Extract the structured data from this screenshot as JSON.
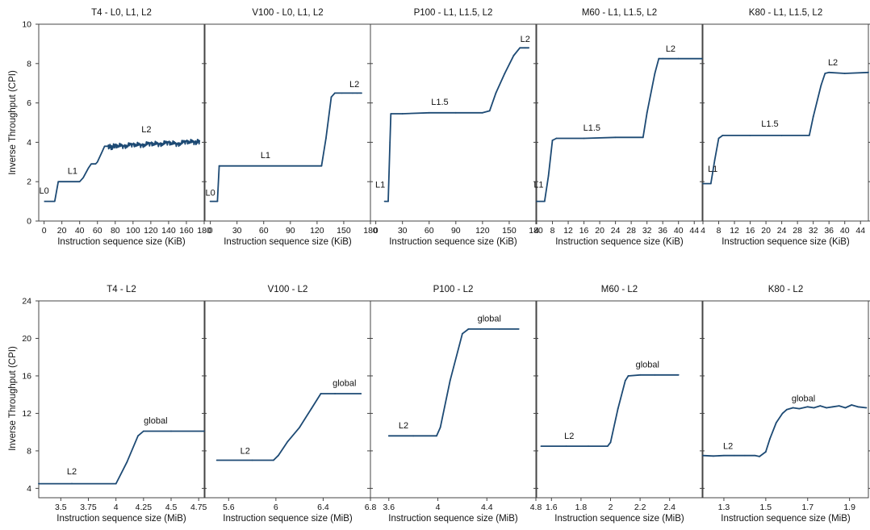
{
  "figure": {
    "ylabel": "Inverse Throughput (CPI)",
    "line_color": "#1d4a74"
  },
  "chart_data": [
    {
      "type": "line",
      "title": "T4 - L0, L1, L2",
      "xlabel": "Instruction sequence size (KiB)",
      "ylabel": "Inverse Throughput (CPI)",
      "xlim": [
        -6,
        180
      ],
      "ylim": [
        0,
        10
      ],
      "xticks": [
        0,
        20,
        40,
        60,
        80,
        100,
        120,
        140,
        160,
        180
      ],
      "xtick_labels": [
        "0",
        "20",
        "40",
        "60",
        "80",
        "100",
        "120",
        "140",
        "160",
        "180"
      ],
      "yticks": [
        0,
        2,
        4,
        6,
        8,
        10
      ],
      "ytick_labels": [
        "0",
        "2",
        "4",
        "6",
        "8",
        "10"
      ],
      "series": [
        {
          "x": [
            0,
            12,
            16,
            40,
            44,
            50,
            53,
            58,
            60,
            65,
            68,
            72,
            76,
            80,
            90,
            100,
            110,
            120,
            130,
            140,
            150,
            160,
            170,
            175
          ],
          "y": [
            1,
            1,
            2,
            2,
            2.2,
            2.7,
            2.9,
            2.9,
            3,
            3.5,
            3.8,
            3.8,
            3.75,
            3.85,
            3.8,
            3.9,
            3.85,
            3.95,
            3.9,
            4,
            3.9,
            4.05,
            4,
            4.05
          ],
          "noise": 0.12,
          "noise_from": 70
        }
      ],
      "annotations": [
        {
          "text": "L0",
          "x": 0,
          "y": 1.4
        },
        {
          "text": "L1",
          "x": 32,
          "y": 2.4
        },
        {
          "text": "L2",
          "x": 115,
          "y": 4.5
        }
      ]
    },
    {
      "type": "line",
      "title": "V100 - L0, L1, L2",
      "xlabel": "Instruction sequence size (KiB)",
      "xlim": [
        -6,
        180
      ],
      "ylim": [
        0,
        10
      ],
      "xticks": [
        0,
        30,
        60,
        90,
        120,
        150,
        180
      ],
      "xtick_labels": [
        "0",
        "30",
        "60",
        "90",
        "120",
        "150",
        "180"
      ],
      "yticks": [
        0,
        2,
        4,
        6,
        8,
        10
      ],
      "ytick_labels": [],
      "series": [
        {
          "x": [
            0,
            8,
            10,
            125,
            130,
            136,
            140,
            148,
            160,
            165,
            170
          ],
          "y": [
            1,
            1,
            2.8,
            2.8,
            4.2,
            6.3,
            6.5,
            6.5,
            6.5,
            6.5,
            6.5
          ],
          "noise": 0
        }
      ],
      "annotations": [
        {
          "text": "L0",
          "x": 0,
          "y": 1.3
        },
        {
          "text": "L1",
          "x": 62,
          "y": 3.2
        },
        {
          "text": "L2",
          "x": 162,
          "y": 6.8
        }
      ]
    },
    {
      "type": "line",
      "title": "P100 - L1, L1.5, L2",
      "xlabel": "Instruction sequence size (KiB)",
      "xlim": [
        -6,
        180
      ],
      "ylim": [
        0,
        10
      ],
      "xticks": [
        0,
        30,
        60,
        90,
        120,
        150,
        180
      ],
      "xtick_labels": [
        "0",
        "30",
        "60",
        "90",
        "120",
        "150",
        "180"
      ],
      "yticks": [
        0,
        2,
        4,
        6,
        8,
        10
      ],
      "ytick_labels": [],
      "series": [
        {
          "x": [
            10,
            14,
            16,
            17,
            30,
            60,
            90,
            120,
            128,
            135,
            145,
            155,
            162,
            168,
            172
          ],
          "y": [
            1,
            1,
            4,
            5.45,
            5.45,
            5.5,
            5.5,
            5.5,
            5.6,
            6.5,
            7.5,
            8.4,
            8.8,
            8.8,
            8.8
          ],
          "noise": 0
        }
      ],
      "annotations": [
        {
          "text": "L1",
          "x": 5,
          "y": 1.7
        },
        {
          "text": "L1.5",
          "x": 72,
          "y": 5.9
        },
        {
          "text": "L2",
          "x": 168,
          "y": 9.1
        }
      ]
    },
    {
      "type": "line",
      "title": "M60 - L1, L1.5, L2",
      "xlabel": "Instruction sequence size (KiB)",
      "xlim": [
        4,
        46
      ],
      "ylim": [
        0,
        10
      ],
      "xticks": [
        4,
        8,
        12,
        16,
        20,
        24,
        28,
        32,
        36,
        40,
        44
      ],
      "xtick_labels": [
        "4",
        "8",
        "12",
        "16",
        "20",
        "24",
        "28",
        "32",
        "36",
        "40",
        "44"
      ],
      "yticks": [
        0,
        2,
        4,
        6,
        8,
        10
      ],
      "ytick_labels": [],
      "series": [
        {
          "x": [
            4,
            6,
            7,
            8,
            9,
            16,
            24,
            31,
            32,
            34,
            35,
            36,
            40,
            46
          ],
          "y": [
            1,
            1,
            2.3,
            4.1,
            4.2,
            4.2,
            4.25,
            4.25,
            5.5,
            7.5,
            8.25,
            8.25,
            8.25,
            8.25
          ],
          "noise": 0
        }
      ],
      "annotations": [
        {
          "text": "L1",
          "x": 4.5,
          "y": 1.7
        },
        {
          "text": "L1.5",
          "x": 18,
          "y": 4.6
        },
        {
          "text": "L2",
          "x": 38,
          "y": 8.6
        }
      ]
    },
    {
      "type": "line",
      "title": "K80 - L1, L1.5, L2",
      "xlabel": "Instruction sequence size (KiB)",
      "xlim": [
        4,
        46
      ],
      "ylim": [
        0,
        10
      ],
      "xticks": [
        4,
        8,
        12,
        16,
        20,
        24,
        28,
        32,
        36,
        40,
        44
      ],
      "xtick_labels": [
        "4",
        "8",
        "12",
        "16",
        "20",
        "24",
        "28",
        "32",
        "36",
        "40",
        "44"
      ],
      "yticks": [
        0,
        2,
        4,
        6,
        8,
        10
      ],
      "ytick_labels": [],
      "series": [
        {
          "x": [
            4,
            6,
            7,
            8,
            9,
            16,
            24,
            31,
            32,
            34,
            35,
            36,
            40,
            46
          ],
          "y": [
            1.9,
            1.9,
            3.1,
            4.2,
            4.35,
            4.35,
            4.35,
            4.35,
            5.3,
            6.9,
            7.5,
            7.55,
            7.5,
            7.55
          ],
          "noise": 0
        }
      ],
      "annotations": [
        {
          "text": "L1",
          "x": 6.5,
          "y": 2.5
        },
        {
          "text": "L1.5",
          "x": 21,
          "y": 4.8
        },
        {
          "text": "L2",
          "x": 37,
          "y": 7.9
        }
      ]
    },
    {
      "type": "line",
      "title": "T4 - L2",
      "xlabel": "Instruction sequence size (MiB)",
      "ylabel": "Inverse Throughput (CPI)",
      "xlim": [
        3.3,
        4.8
      ],
      "ylim": [
        3,
        24
      ],
      "xticks": [
        3.5,
        3.75,
        4,
        4.25,
        4.5,
        4.75
      ],
      "xtick_labels": [
        "3.5",
        "3.75",
        "4",
        "4.25",
        "4.5",
        "4.75"
      ],
      "yticks": [
        4,
        8,
        12,
        16,
        20,
        24
      ],
      "ytick_labels": [
        "4",
        "8",
        "12",
        "16",
        "20",
        "24"
      ],
      "series": [
        {
          "x": [
            3.3,
            3.6,
            4.0,
            4.1,
            4.2,
            4.25,
            4.5,
            4.8
          ],
          "y": [
            4.5,
            4.5,
            4.5,
            6.8,
            9.6,
            10.1,
            10.1,
            10.1
          ],
          "noise": 0
        }
      ],
      "annotations": [
        {
          "text": "L2",
          "x": 3.6,
          "y": 5.5
        },
        {
          "text": "global",
          "x": 4.36,
          "y": 10.9
        }
      ]
    },
    {
      "type": "line",
      "title": "V100 - L2",
      "xlabel": "Instruction sequence size (MiB)",
      "xlim": [
        5.4,
        6.8
      ],
      "ylim": [
        3,
        24
      ],
      "xticks": [
        5.6,
        6,
        6.4,
        6.8
      ],
      "xtick_labels": [
        "5.6",
        "6",
        "6.4",
        "6.8"
      ],
      "yticks": [
        4,
        8,
        12,
        16,
        20,
        24
      ],
      "ytick_labels": [],
      "series": [
        {
          "x": [
            5.5,
            5.8,
            5.98,
            6.02,
            6.1,
            6.2,
            6.3,
            6.38,
            6.5,
            6.72
          ],
          "y": [
            7,
            7,
            7,
            7.5,
            9,
            10.5,
            12.5,
            14.1,
            14.1,
            14.1
          ],
          "noise": 0
        }
      ],
      "annotations": [
        {
          "text": "L2",
          "x": 5.74,
          "y": 7.7
        },
        {
          "text": "global",
          "x": 6.58,
          "y": 14.9
        }
      ]
    },
    {
      "type": "line",
      "title": "P100 - L2",
      "xlabel": "Instruction sequence size (MiB)",
      "xlim": [
        3.45,
        4.8
      ],
      "ylim": [
        3,
        24
      ],
      "xticks": [
        3.6,
        4,
        4.4,
        4.8
      ],
      "xtick_labels": [
        "3.6",
        "4",
        "4.4",
        "4.8"
      ],
      "yticks": [
        4,
        8,
        12,
        16,
        20,
        24
      ],
      "ytick_labels": [],
      "series": [
        {
          "x": [
            3.6,
            3.8,
            3.99,
            4.02,
            4.1,
            4.2,
            4.25,
            4.35,
            4.5,
            4.66
          ],
          "y": [
            9.6,
            9.6,
            9.6,
            10.5,
            15.5,
            20.5,
            21,
            21,
            21,
            21
          ],
          "noise": 0
        }
      ],
      "annotations": [
        {
          "text": "L2",
          "x": 3.72,
          "y": 10.4
        },
        {
          "text": "global",
          "x": 4.42,
          "y": 21.8
        }
      ]
    },
    {
      "type": "line",
      "title": "M60 - L2",
      "xlabel": "Instruction sequence size (MiB)",
      "xlim": [
        1.5,
        2.62
      ],
      "ylim": [
        3,
        24
      ],
      "xticks": [
        1.6,
        1.8,
        2,
        2.2,
        2.4
      ],
      "xtick_labels": [
        "1.6",
        "1.8",
        "2",
        "2.2",
        "2.4"
      ],
      "yticks": [
        4,
        8,
        12,
        16,
        20,
        24
      ],
      "ytick_labels": [],
      "series": [
        {
          "x": [
            1.53,
            1.7,
            1.85,
            1.98,
            2.0,
            2.05,
            2.1,
            2.12,
            2.2,
            2.3,
            2.46
          ],
          "y": [
            8.5,
            8.5,
            8.5,
            8.5,
            8.9,
            12.5,
            15.5,
            16,
            16.1,
            16.1,
            16.1
          ],
          "noise": 0
        }
      ],
      "annotations": [
        {
          "text": "L2",
          "x": 1.72,
          "y": 9.3
        },
        {
          "text": "global",
          "x": 2.25,
          "y": 16.9
        }
      ]
    },
    {
      "type": "line",
      "title": "K80 - L2",
      "xlabel": "Instruction sequence size (MiB)",
      "xlim": [
        1.2,
        1.99
      ],
      "ylim": [
        3,
        24
      ],
      "xticks": [
        1.3,
        1.5,
        1.7,
        1.9
      ],
      "xtick_labels": [
        "1.3",
        "1.5",
        "1.7",
        "1.9"
      ],
      "yticks": [
        4,
        8,
        12,
        16,
        20,
        24
      ],
      "ytick_labels": [],
      "series": [
        {
          "x": [
            1.2,
            1.25,
            1.3,
            1.35,
            1.4,
            1.45,
            1.47,
            1.5,
            1.52,
            1.55,
            1.58,
            1.6,
            1.63,
            1.66,
            1.7,
            1.73,
            1.76,
            1.79,
            1.82,
            1.85,
            1.88,
            1.91,
            1.94,
            1.98
          ],
          "y": [
            7.5,
            7.45,
            7.5,
            7.5,
            7.5,
            7.5,
            7.4,
            7.9,
            9.3,
            11,
            12,
            12.4,
            12.6,
            12.5,
            12.7,
            12.6,
            12.8,
            12.6,
            12.7,
            12.8,
            12.6,
            12.9,
            12.7,
            12.6
          ],
          "noise": 0
        }
      ],
      "annotations": [
        {
          "text": "L2",
          "x": 1.32,
          "y": 8.2
        },
        {
          "text": "global",
          "x": 1.68,
          "y": 13.3
        }
      ]
    }
  ]
}
